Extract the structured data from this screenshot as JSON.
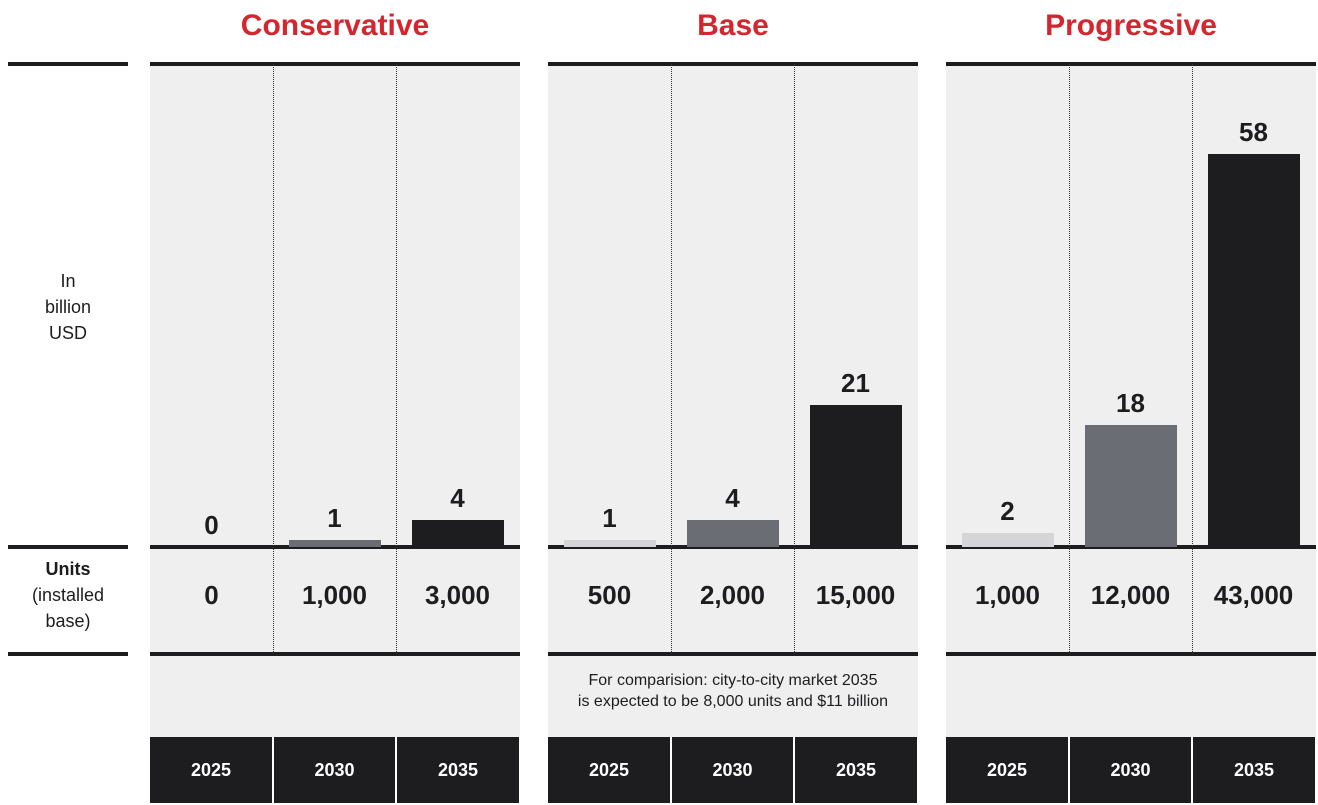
{
  "side": {
    "value_axis_label": [
      "In",
      "billion",
      "USD"
    ],
    "units_label_bold": "Units",
    "units_label_sub": [
      "(installed",
      "base)"
    ]
  },
  "colors": {
    "title": "#d3262f",
    "bar_2025": "#d5d5d7",
    "bar_2030": "#6b6d74",
    "bar_2035": "#1d1c1f",
    "panel_bg": "#efeff0"
  },
  "chart_data": {
    "type": "bar",
    "ylabel": "In billion USD",
    "years": [
      "2025",
      "2030",
      "2035"
    ],
    "ylim": [
      0,
      58
    ],
    "series": [
      {
        "name": "Conservative",
        "value_labels": [
          "0",
          "1",
          "4"
        ],
        "values": [
          0,
          1,
          4
        ],
        "units": [
          "0",
          "1,000",
          "3,000"
        ],
        "note": ""
      },
      {
        "name": "Base",
        "value_labels": [
          "1",
          "4",
          "21"
        ],
        "values": [
          1,
          4,
          21
        ],
        "units": [
          "500",
          "2,000",
          "15,000"
        ],
        "note": [
          "For comparision: city-to-city market 2035",
          "is expected to be 8,000 units and $11 billion"
        ]
      },
      {
        "name": "Progressive",
        "value_labels": [
          "2",
          "18",
          "58"
        ],
        "values": [
          2,
          18,
          58
        ],
        "units": [
          "1,000",
          "12,000",
          "43,000"
        ],
        "note": ""
      }
    ]
  }
}
